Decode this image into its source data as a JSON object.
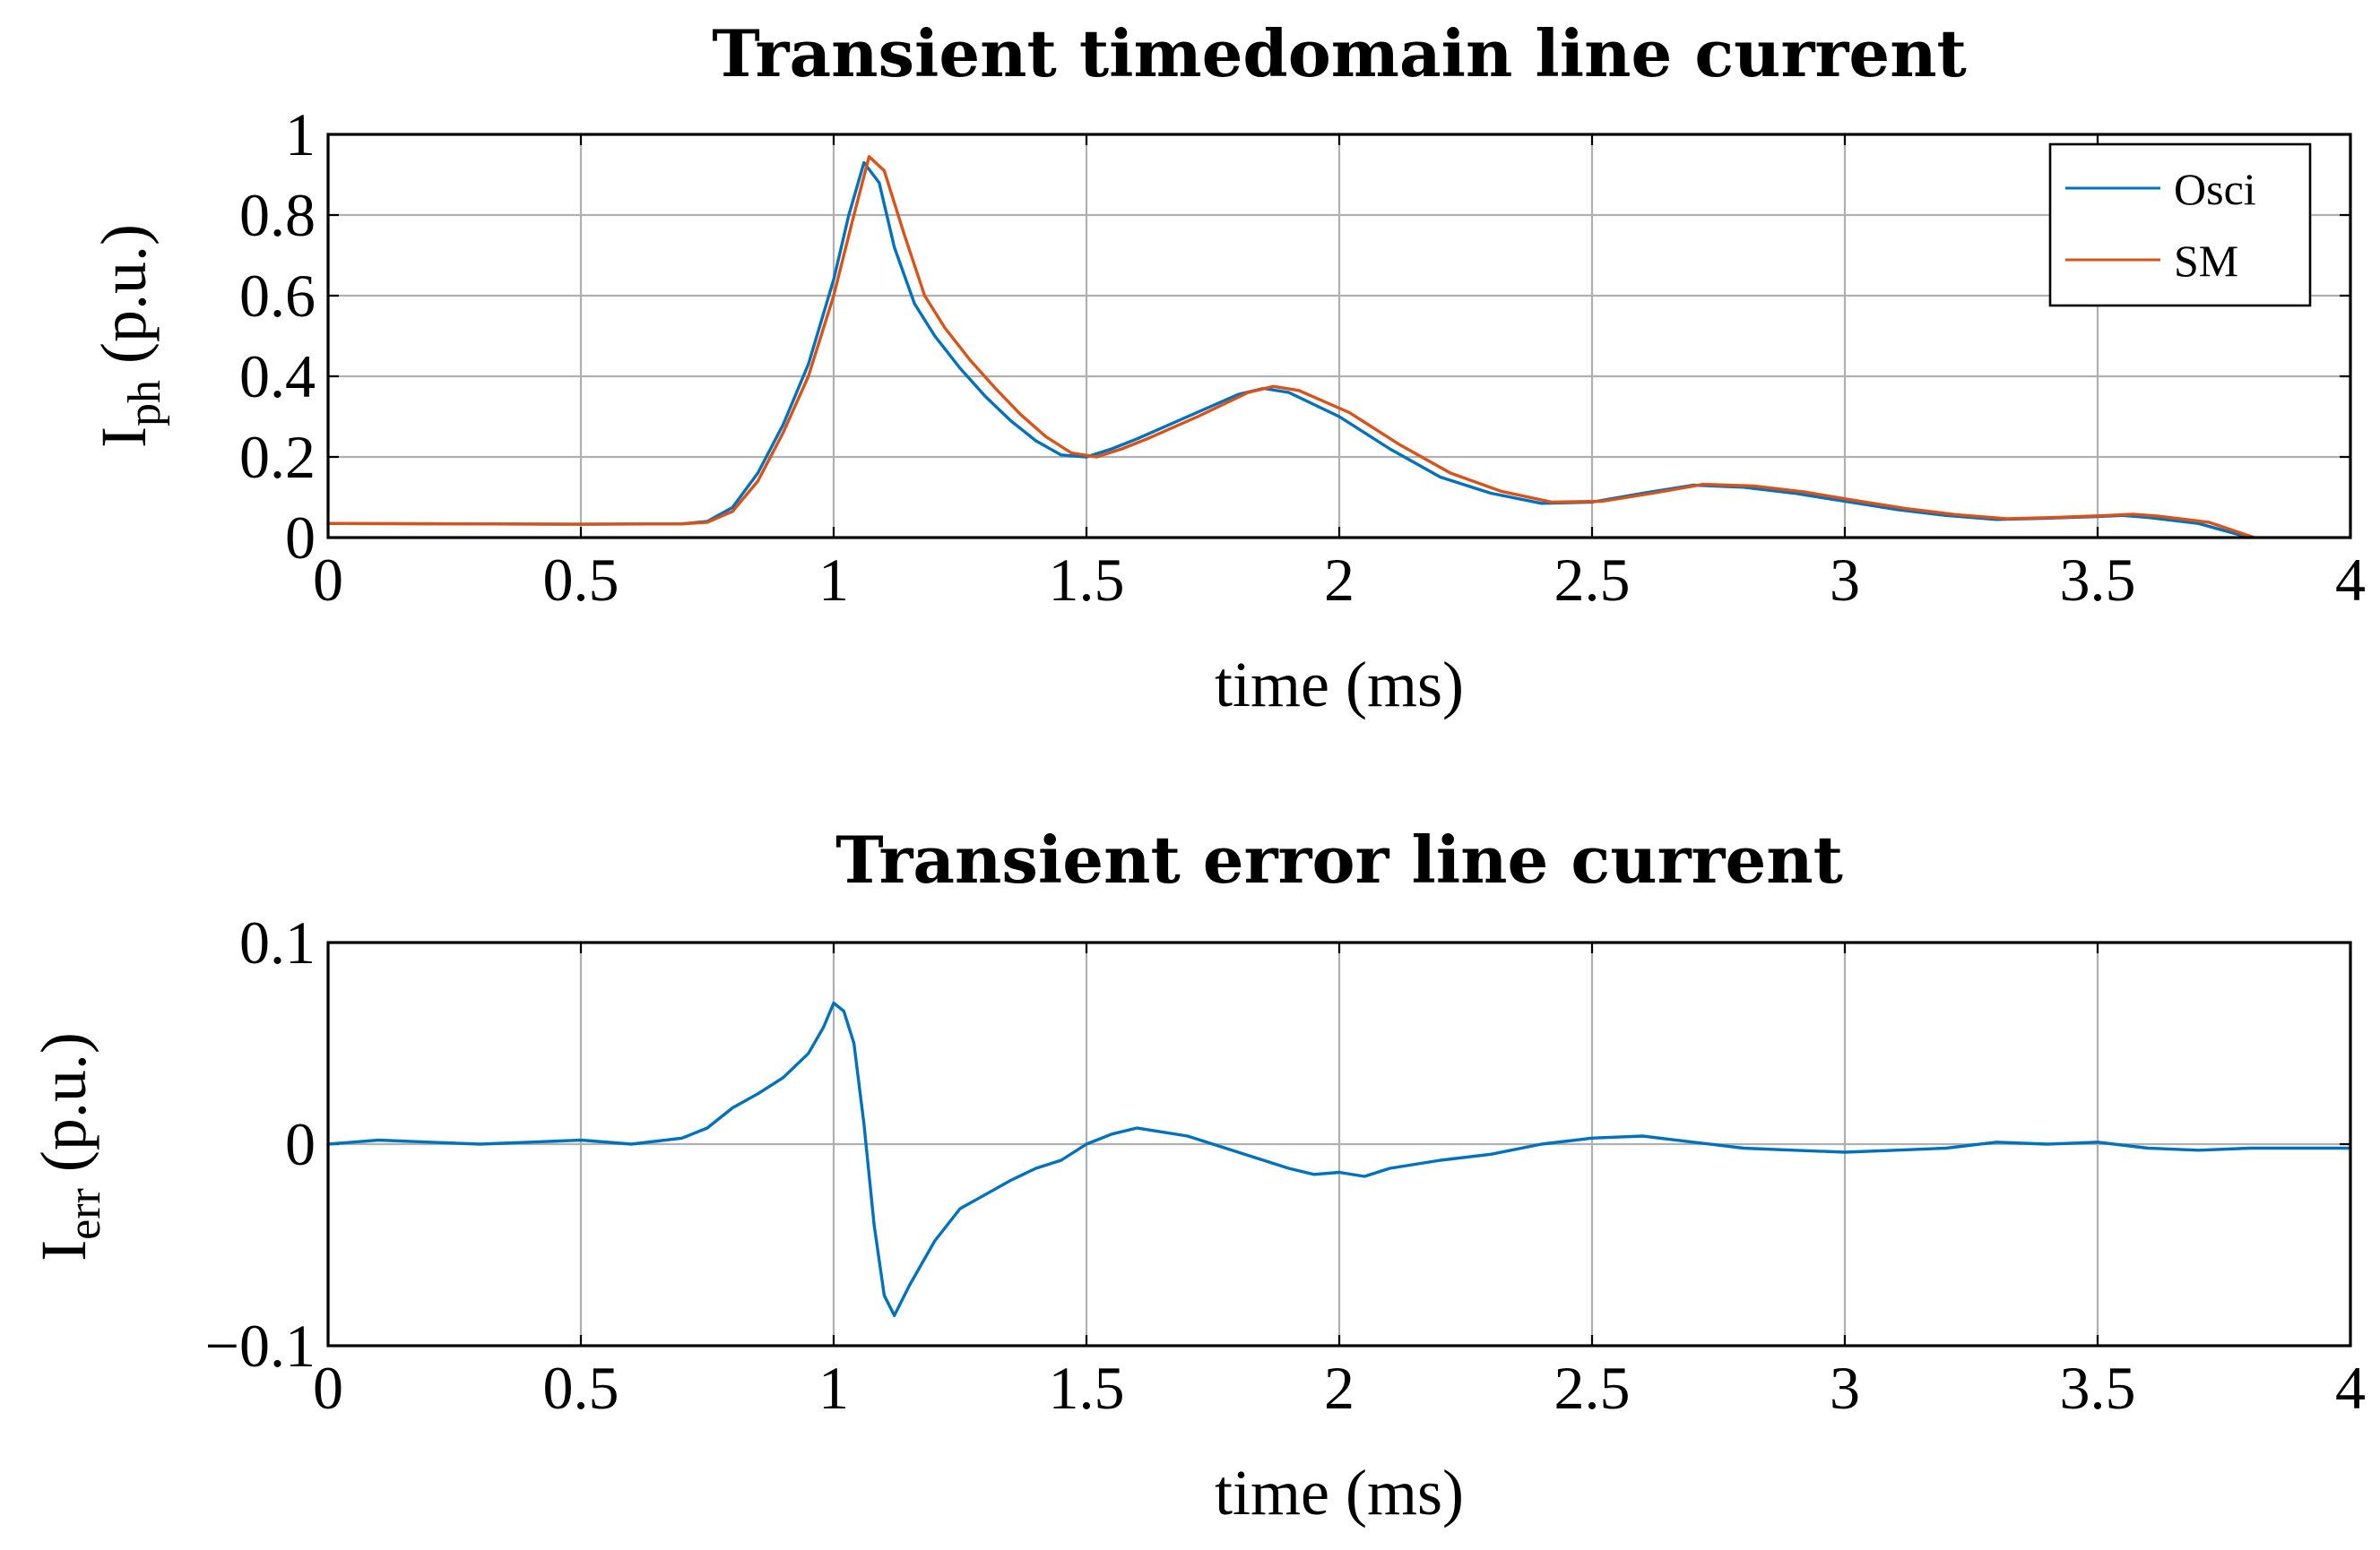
{
  "chart_data": [
    {
      "type": "line",
      "title": "Transient timedomain line current",
      "xlabel": "time (ms)",
      "ylabel_main": "I",
      "ylabel_sub": "ph",
      "ylabel_unit": "(p.u.)",
      "xlim": [
        0,
        4
      ],
      "ylim": [
        0,
        1
      ],
      "xticks": [
        "0",
        "0.5",
        "1",
        "1.5",
        "2",
        "2.5",
        "3",
        "3.5",
        "4"
      ],
      "yticks": [
        "0",
        "0.2",
        "0.4",
        "0.6",
        "0.8",
        "1"
      ],
      "grid": true,
      "legend_position": "top-right",
      "series": [
        {
          "name": "Osci",
          "color": "#0072BD",
          "x": [
            0,
            0.25,
            0.5,
            0.7,
            0.75,
            0.8,
            0.85,
            0.9,
            0.95,
            1.0,
            1.03,
            1.06,
            1.09,
            1.12,
            1.16,
            1.2,
            1.25,
            1.3,
            1.35,
            1.4,
            1.45,
            1.5,
            1.55,
            1.6,
            1.7,
            1.8,
            1.85,
            1.9,
            2.0,
            2.1,
            2.2,
            2.3,
            2.4,
            2.5,
            2.6,
            2.7,
            2.8,
            2.9,
            3.0,
            3.1,
            3.2,
            3.3,
            3.4,
            3.5,
            3.55,
            3.6,
            3.7,
            3.8
          ],
          "y": [
            0.035,
            0.034,
            0.033,
            0.034,
            0.04,
            0.075,
            0.16,
            0.28,
            0.43,
            0.64,
            0.8,
            0.93,
            0.88,
            0.72,
            0.58,
            0.5,
            0.42,
            0.35,
            0.29,
            0.24,
            0.205,
            0.2,
            0.22,
            0.245,
            0.3,
            0.355,
            0.37,
            0.36,
            0.3,
            0.22,
            0.15,
            0.11,
            0.085,
            0.088,
            0.11,
            0.13,
            0.125,
            0.11,
            0.09,
            0.07,
            0.055,
            0.045,
            0.048,
            0.052,
            0.055,
            0.05,
            0.035,
            0.0
          ]
        },
        {
          "name": "SM",
          "color": "#D95319",
          "x": [
            0,
            0.25,
            0.5,
            0.7,
            0.75,
            0.8,
            0.85,
            0.9,
            0.95,
            1.0,
            1.04,
            1.07,
            1.1,
            1.14,
            1.18,
            1.22,
            1.27,
            1.32,
            1.37,
            1.42,
            1.47,
            1.52,
            1.57,
            1.62,
            1.72,
            1.82,
            1.87,
            1.92,
            2.02,
            2.12,
            2.22,
            2.32,
            2.42,
            2.52,
            2.62,
            2.72,
            2.82,
            2.92,
            3.02,
            3.12,
            3.22,
            3.32,
            3.42,
            3.52,
            3.57,
            3.62,
            3.72,
            3.81
          ],
          "y": [
            0.035,
            0.034,
            0.033,
            0.034,
            0.038,
            0.065,
            0.14,
            0.26,
            0.4,
            0.6,
            0.8,
            0.945,
            0.91,
            0.75,
            0.6,
            0.52,
            0.44,
            0.37,
            0.305,
            0.25,
            0.21,
            0.2,
            0.22,
            0.245,
            0.3,
            0.36,
            0.375,
            0.365,
            0.31,
            0.23,
            0.16,
            0.115,
            0.088,
            0.09,
            0.11,
            0.132,
            0.128,
            0.113,
            0.092,
            0.072,
            0.057,
            0.047,
            0.05,
            0.055,
            0.058,
            0.053,
            0.038,
            0.0
          ]
        }
      ]
    },
    {
      "type": "line",
      "title": "Transient error line current",
      "xlabel": "time (ms)",
      "ylabel_main": "I",
      "ylabel_sub": "err",
      "ylabel_unit": "(p.u.)",
      "xlim": [
        0,
        4
      ],
      "ylim": [
        -0.1,
        0.1
      ],
      "xticks": [
        "0",
        "0.5",
        "1",
        "1.5",
        "2",
        "2.5",
        "3",
        "3.5",
        "4"
      ],
      "yticks": [
        "−0.1",
        "0",
        "0.1"
      ],
      "grid": true,
      "series": [
        {
          "color": "#0072BD",
          "x": [
            0,
            0.1,
            0.2,
            0.3,
            0.4,
            0.5,
            0.6,
            0.7,
            0.75,
            0.8,
            0.85,
            0.9,
            0.95,
            0.98,
            1.0,
            1.02,
            1.04,
            1.06,
            1.08,
            1.1,
            1.12,
            1.15,
            1.2,
            1.25,
            1.3,
            1.35,
            1.4,
            1.45,
            1.5,
            1.55,
            1.6,
            1.7,
            1.75,
            1.8,
            1.85,
            1.9,
            1.95,
            2.0,
            2.05,
            2.1,
            2.2,
            2.3,
            2.4,
            2.5,
            2.6,
            2.7,
            2.8,
            2.9,
            3.0,
            3.1,
            3.2,
            3.3,
            3.4,
            3.5,
            3.6,
            3.7,
            3.8,
            3.9,
            4.0
          ],
          "y": [
            0.0,
            0.002,
            0.001,
            0.0,
            0.001,
            0.002,
            0.0,
            0.003,
            0.008,
            0.018,
            0.025,
            0.033,
            0.045,
            0.058,
            0.07,
            0.066,
            0.05,
            0.01,
            -0.04,
            -0.075,
            -0.085,
            -0.07,
            -0.048,
            -0.032,
            -0.025,
            -0.018,
            -0.012,
            -0.008,
            0.0,
            0.005,
            0.008,
            0.004,
            0.0,
            -0.004,
            -0.008,
            -0.012,
            -0.015,
            -0.014,
            -0.016,
            -0.012,
            -0.008,
            -0.005,
            0.0,
            0.003,
            0.004,
            0.001,
            -0.002,
            -0.003,
            -0.004,
            -0.003,
            -0.002,
            0.001,
            0.0,
            0.001,
            -0.002,
            -0.003,
            -0.002,
            -0.002,
            -0.002
          ]
        }
      ]
    }
  ]
}
